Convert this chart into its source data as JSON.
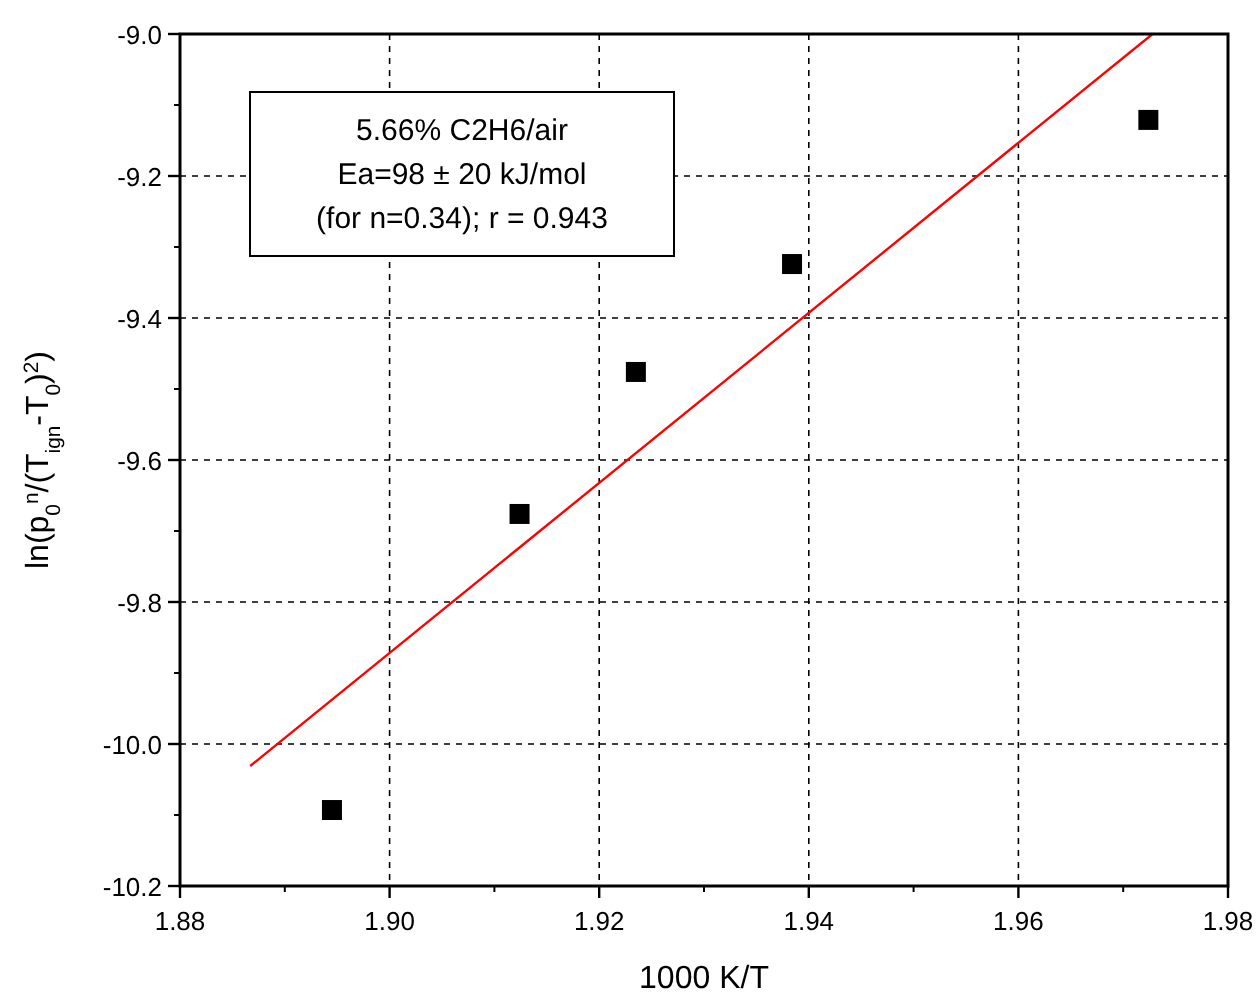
{
  "chart_data": {
    "type": "scatter",
    "xlabel": "1000 K/T",
    "ylabel": "ln(p$_{0}$$^{n}$/(T$_{ign}$-T$_{0}$)$^{2}$)",
    "annotations": [
      "5.66% C2H6/air",
      "Ea=98 ± 20 kJ/mol",
      "(for n=0.34); r = 0.943"
    ],
    "xlim": [
      1.88,
      1.98
    ],
    "xticks": [
      {
        "value": 1.88,
        "label": "1.88"
      },
      {
        "value": 1.9,
        "label": "1.90"
      },
      {
        "value": 1.92,
        "label": "1.92"
      },
      {
        "value": 1.94,
        "label": "1.94"
      },
      {
        "value": 1.96,
        "label": "1.96"
      },
      {
        "value": 1.98,
        "label": "1.98"
      }
    ],
    "ylim": [
      -10.2,
      -9.0
    ],
    "yticks": [
      {
        "value": -10.2,
        "label": "-10.2"
      },
      {
        "value": -10.0,
        "label": "-10.0"
      },
      {
        "value": -9.8,
        "label": "-9.8"
      },
      {
        "value": -9.6,
        "label": "-9.6"
      },
      {
        "value": -9.4,
        "label": "-9.4"
      },
      {
        "value": -9.2,
        "label": "-9.2"
      },
      {
        "value": -9.0,
        "label": "-9.0"
      }
    ],
    "grid": true,
    "marker": "square",
    "series": [
      {
        "type": "scatter",
        "color": "#000000",
        "x": [
          1.8945,
          1.9124,
          1.9235,
          1.9384,
          1.9724
        ],
        "values": [
          -10.093,
          -9.676,
          -9.476,
          -9.324,
          -9.121
        ]
      },
      {
        "type": "line",
        "color": "#ff0000",
        "marker": "none",
        "x": [
          1.8867,
          1.9728
        ],
        "values": [
          -10.031,
          -9.0
        ]
      }
    ]
  }
}
